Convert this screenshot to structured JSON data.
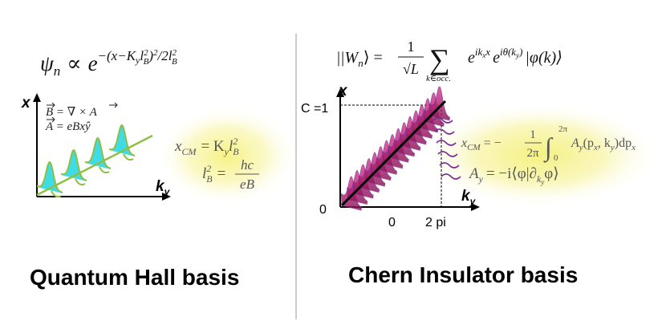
{
  "left": {
    "wavefunction": {
      "lhs": "ψ",
      "sub": "n",
      "prop": "∝",
      "exp": "−(x−K",
      "exp_y": "y",
      "exp_l": "l",
      "exp_B": "B",
      "exp_2a": "2",
      "exp_close": ")",
      "exp_2b": "2",
      "exp_div": "/2l",
      "exp_B2": "B",
      "exp_2c": "2"
    },
    "axis_x_label": "x",
    "axis_k_label": "k",
    "axis_k_sub": "y",
    "gauge1": "B = ∇ × A",
    "gauge2": "A = eBxŷ",
    "xcm_lhs": "x",
    "xcm_sub": "CM",
    "xcm_rhs": "= K",
    "xcm_rhs_sub": "y",
    "xcm_l": "l",
    "xcm_B": "B",
    "xcm_2": "2",
    "lb_l": "l",
    "lb_B": "B",
    "lb_2": "2",
    "lb_eq": "=",
    "lb_num": "hc",
    "lb_den": "eB",
    "basis_label": "Quantum Hall basis"
  },
  "right": {
    "wannier": {
      "ket_open": "|W",
      "ket_sub": "n",
      "ket_close": "⟩ =",
      "frac_num": "1",
      "frac_den": "√L",
      "sum": "∑",
      "sum_sub": "k∈occ.",
      "e1": "e",
      "e1_exp": "ik",
      "e1_exp_sub": "x",
      "e1_exp_x": "x",
      "e2": "e",
      "e2_exp": "iθ(k",
      "e2_exp_sub": "y",
      "e2_exp_close": ")",
      "phi": "|φ(k)⟩"
    },
    "axis_x_label": "x",
    "axis_k_label": "k",
    "axis_k_sub": "y",
    "c_label": "C =1",
    "origin_label": "0",
    "tick_0": "0",
    "tick_2pi": "2 pi",
    "xcm_lhs": "x",
    "xcm_sub": "CM",
    "xcm_eq": "= −",
    "xcm_frac_num": "1",
    "xcm_frac_den": "2π",
    "int": "∫",
    "int_top": "2π",
    "int_bot": "0",
    "int_body": "A",
    "int_body_sub": "y",
    "int_args": "(p",
    "int_args_sub": "x",
    "int_args2": ", k",
    "int_args_sub2": "y",
    "int_args3": ")dp",
    "int_args_sub3": "x",
    "ay_lhs": "A",
    "ay_sub": "y",
    "ay_rhs": "= −i⟨φ|∂",
    "ay_rhs_sub": "k",
    "ay_rhs_subsub": "y",
    "ay_rhs2": "φ⟩",
    "basis_label": "Chern Insulator basis"
  },
  "colors": {
    "cyan": "#1fd6e0",
    "green": "#8fbf45",
    "magenta": "#c81d7e",
    "purple": "#7b2d8f",
    "glow": "#f3ef7a",
    "divider": "#9a9a9a"
  }
}
